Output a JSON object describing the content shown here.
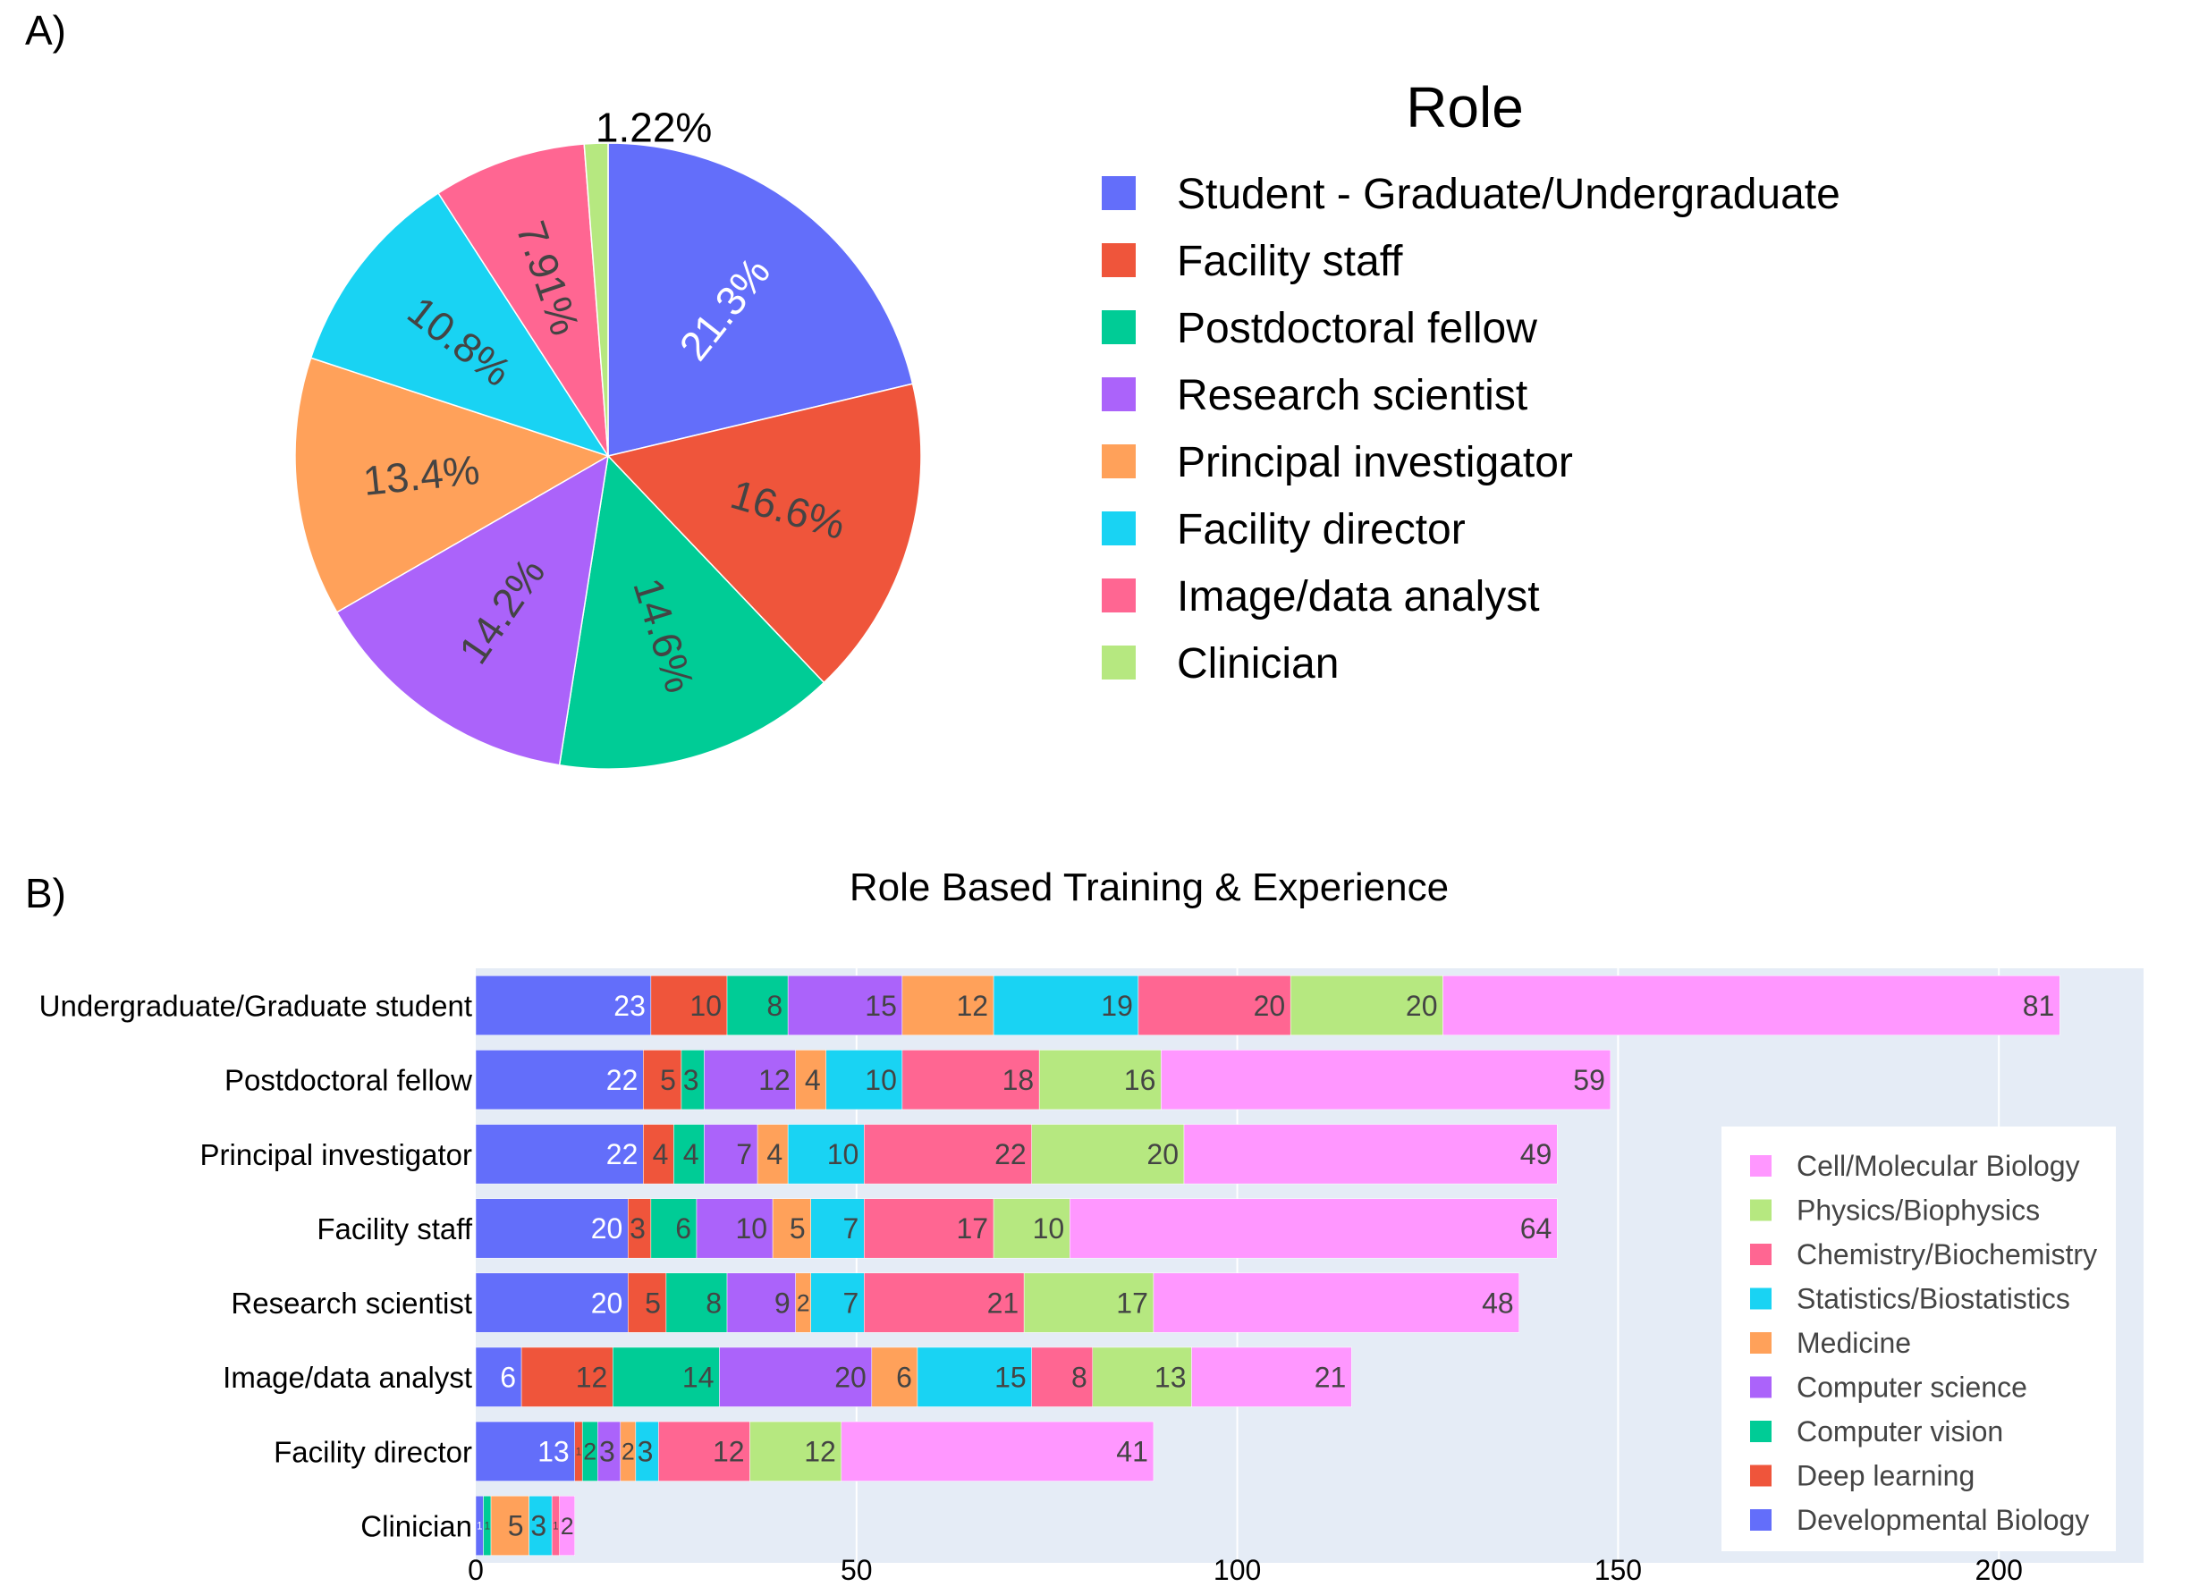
{
  "panel_labels": {
    "a": "A)",
    "b": "B)"
  },
  "chart_data": [
    {
      "type": "pie",
      "legend_title": "Role",
      "legend_position": "right",
      "slices": [
        {
          "label": "Student - Graduate/Undergraduate",
          "value": 21.3,
          "text": "21.3%",
          "color": "#636efa",
          "text_color": "#ffffff"
        },
        {
          "label": "Facility staff",
          "value": 16.6,
          "text": "16.6%",
          "color": "#ef553b",
          "text_color": "#444444"
        },
        {
          "label": "Postdoctoral fellow",
          "value": 14.6,
          "text": "14.6%",
          "color": "#00cc96",
          "text_color": "#444444"
        },
        {
          "label": "Research scientist",
          "value": 14.2,
          "text": "14.2%",
          "color": "#ab63fa",
          "text_color": "#444444"
        },
        {
          "label": "Principal investigator",
          "value": 13.4,
          "text": "13.4%",
          "color": "#ffa15a",
          "text_color": "#444444"
        },
        {
          "label": "Facility director",
          "value": 10.8,
          "text": "10.8%",
          "color": "#19d3f3",
          "text_color": "#444444"
        },
        {
          "label": "Image/data analyst",
          "value": 7.91,
          "text": "7.91%",
          "color": "#ff6692",
          "text_color": "#444444"
        },
        {
          "label": "Clinician",
          "value": 1.22,
          "text": "1.22%",
          "color": "#b6e880",
          "text_color": "#000000"
        }
      ]
    },
    {
      "type": "bar",
      "orientation": "horizontal",
      "stacked": true,
      "title": "Role Based Training & Experience",
      "xlim": [
        0,
        219
      ],
      "xticks": [
        0,
        50,
        100,
        150,
        200
      ],
      "grid": true,
      "legend_position": "bottom-right",
      "categories": [
        "Undergraduate/Graduate student",
        "Postdoctoral fellow",
        "Principal investigator",
        "Facility staff",
        "Research scientist",
        "Image/data analyst",
        "Facility director",
        "Clinician"
      ],
      "series": [
        {
          "name": "Developmental Biology",
          "color": "#636efa",
          "label_color": "#ffffff",
          "values": [
            23,
            22,
            22,
            20,
            20,
            6,
            13,
            1
          ]
        },
        {
          "name": "Deep learning",
          "color": "#ef553b",
          "label_color": "#444444",
          "values": [
            10,
            5,
            4,
            3,
            5,
            12,
            1,
            0
          ]
        },
        {
          "name": "Computer vision",
          "color": "#00cc96",
          "label_color": "#444444",
          "values": [
            8,
            3,
            4,
            6,
            8,
            14,
            2,
            1
          ]
        },
        {
          "name": "Computer science",
          "color": "#ab63fa",
          "label_color": "#444444",
          "values": [
            15,
            12,
            7,
            10,
            9,
            20,
            3,
            0
          ]
        },
        {
          "name": "Medicine",
          "color": "#ffa15a",
          "label_color": "#444444",
          "values": [
            12,
            4,
            4,
            5,
            2,
            6,
            2,
            5
          ]
        },
        {
          "name": "Statistics/Biostatistics",
          "color": "#19d3f3",
          "label_color": "#444444",
          "values": [
            19,
            10,
            10,
            7,
            7,
            15,
            3,
            3
          ]
        },
        {
          "name": "Chemistry/Biochemistry",
          "color": "#ff6692",
          "label_color": "#444444",
          "values": [
            20,
            18,
            22,
            17,
            21,
            8,
            12,
            1
          ]
        },
        {
          "name": "Physics/Biophysics",
          "color": "#b6e880",
          "label_color": "#444444",
          "values": [
            20,
            16,
            20,
            10,
            17,
            13,
            12,
            0
          ]
        },
        {
          "name": "Cell/Molecular Biology",
          "color": "#ff97ff",
          "label_color": "#444444",
          "values": [
            81,
            59,
            49,
            64,
            48,
            21,
            41,
            2
          ]
        }
      ]
    }
  ]
}
